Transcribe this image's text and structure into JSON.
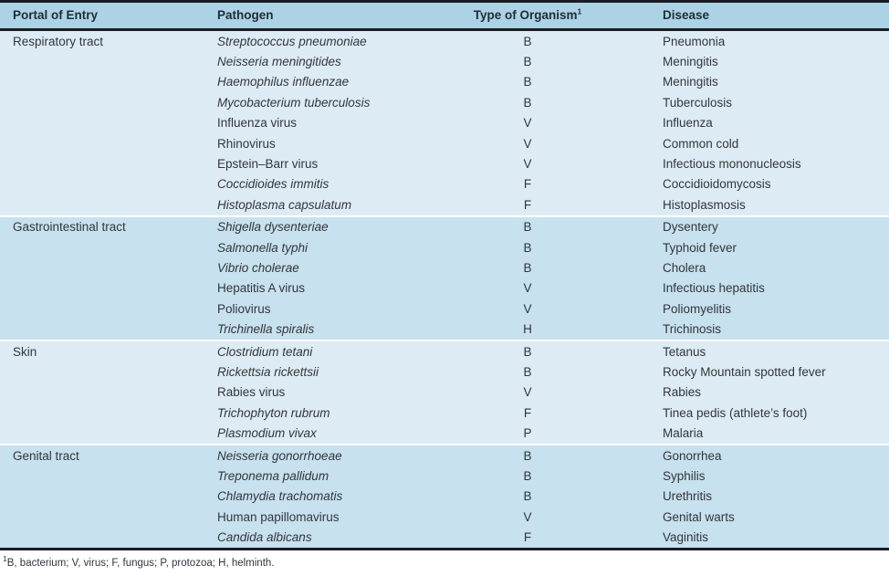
{
  "colors": {
    "header-bg": "#abd3e5",
    "section-light-bg": "#ddecf4",
    "section-medium-bg": "#c7e1ee",
    "border": "#1c1c24",
    "header-text": "#1f2c38",
    "body-text": "#33353c"
  },
  "chart_data": {
    "type": "table",
    "title": "",
    "columns": [
      "Portal of Entry",
      "Pathogen",
      "Type of Organism",
      "Disease"
    ]
  },
  "table": {
    "columns": [
      "Portal of Entry",
      "Pathogen",
      "Type of Organism",
      "Disease"
    ],
    "organism_sup": "1",
    "sections": [
      {
        "portal": "Respiratory tract",
        "rows": [
          {
            "pathogen": "Streptococcus pneumoniae",
            "italic": true,
            "type": "B",
            "disease": "Pneumonia"
          },
          {
            "pathogen": "Neisseria meningitides",
            "italic": true,
            "type": "B",
            "disease": "Meningitis"
          },
          {
            "pathogen": "Haemophilus influenzae",
            "italic": true,
            "type": "B",
            "disease": "Meningitis"
          },
          {
            "pathogen": "Mycobacterium tuberculosis",
            "italic": true,
            "type": "B",
            "disease": "Tuberculosis"
          },
          {
            "pathogen": "Influenza virus",
            "italic": false,
            "type": "V",
            "disease": "Influenza"
          },
          {
            "pathogen": "Rhinovirus",
            "italic": false,
            "type": "V",
            "disease": "Common cold"
          },
          {
            "pathogen": "Epstein–Barr virus",
            "italic": false,
            "type": "V",
            "disease": "Infectious mononucleosis"
          },
          {
            "pathogen": "Coccidioides immitis",
            "italic": true,
            "type": "F",
            "disease": "Coccidioidomycosis"
          },
          {
            "pathogen": "Histoplasma capsulatum",
            "italic": true,
            "type": "F",
            "disease": "Histoplasmosis"
          }
        ]
      },
      {
        "portal": "Gastrointestinal tract",
        "rows": [
          {
            "pathogen": "Shigella dysenteriae",
            "italic": true,
            "type": "B",
            "disease": "Dysentery"
          },
          {
            "pathogen": "Salmonella typhi",
            "italic": true,
            "type": "B",
            "disease": "Typhoid fever"
          },
          {
            "pathogen": "Vibrio cholerae",
            "italic": true,
            "type": "B",
            "disease": "Cholera"
          },
          {
            "pathogen": "Hepatitis A virus",
            "italic": false,
            "type": "V",
            "disease": "Infectious hepatitis"
          },
          {
            "pathogen": "Poliovirus",
            "italic": false,
            "type": "V",
            "disease": "Poliomyelitis"
          },
          {
            "pathogen": "Trichinella spiralis",
            "italic": true,
            "type": "H",
            "disease": "Trichinosis"
          }
        ]
      },
      {
        "portal": "Skin",
        "rows": [
          {
            "pathogen": "Clostridium tetani",
            "italic": true,
            "type": "B",
            "disease": "Tetanus"
          },
          {
            "pathogen": "Rickettsia rickettsii",
            "italic": true,
            "type": "B",
            "disease": "Rocky Mountain spotted fever"
          },
          {
            "pathogen": "Rabies virus",
            "italic": false,
            "type": "V",
            "disease": "Rabies"
          },
          {
            "pathogen": "Trichophyton rubrum",
            "italic": true,
            "type": "F",
            "disease": "Tinea pedis (athlete’s foot)"
          },
          {
            "pathogen": "Plasmodium vivax",
            "italic": true,
            "type": "P",
            "disease": "Malaria"
          }
        ]
      },
      {
        "portal": "Genital tract",
        "rows": [
          {
            "pathogen": "Neisseria gonorrhoeae",
            "italic": true,
            "type": "B",
            "disease": "Gonorrhea"
          },
          {
            "pathogen": "Treponema pallidum",
            "italic": true,
            "type": "B",
            "disease": "Syphilis"
          },
          {
            "pathogen": "Chlamydia trachomatis",
            "italic": true,
            "type": "B",
            "disease": "Urethritis"
          },
          {
            "pathogen": "Human papillomavirus",
            "italic": false,
            "type": "V",
            "disease": "Genital warts"
          },
          {
            "pathogen": "Candida albicans",
            "italic": true,
            "type": "F",
            "disease": "Vaginitis"
          }
        ]
      }
    ],
    "footnote_sup": "1",
    "footnote": "B, bacterium; V, virus; F, fungus; P, protozoa; H, helminth."
  }
}
